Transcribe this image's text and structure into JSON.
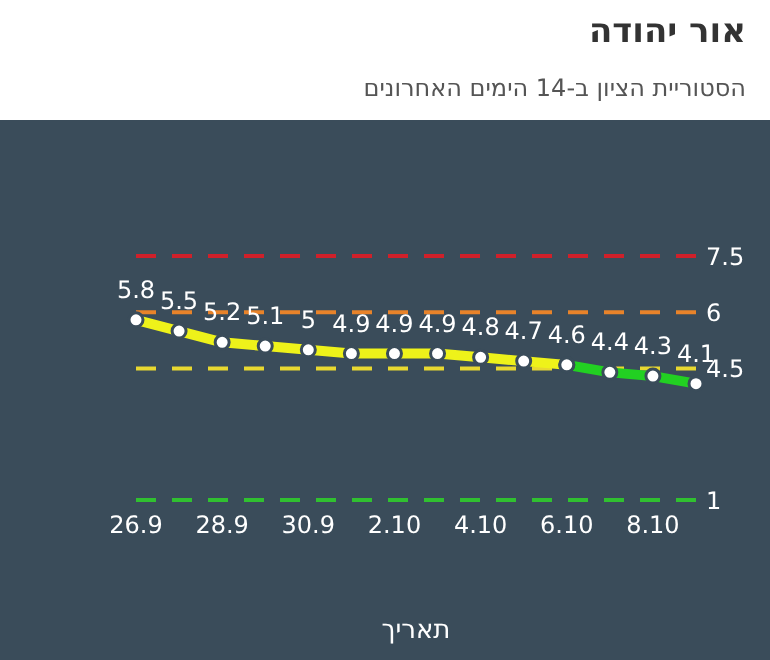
{
  "chart_data": {
    "type": "line",
    "title": "אור יהודה",
    "subtitle": "הסטוריית הציון ב-14 הימים האחרונים",
    "xlabel": "תאריך",
    "categories": [
      "26.9",
      null,
      "28.9",
      null,
      "30.9",
      null,
      "2.10",
      null,
      "4.10",
      null,
      "6.10",
      null,
      "8.10",
      null
    ],
    "series": [
      {
        "color": "#eef21a",
        "values": [
          5.8,
          5.5,
          5.2,
          5.1,
          5,
          4.9,
          4.9,
          4.9,
          4.8,
          4.7,
          4.6,
          null,
          null,
          null
        ],
        "value_labels": [
          "5.8",
          "5.5",
          "5.2",
          "5.1",
          "5",
          "4.9",
          "4.9",
          "4.9",
          "4.8",
          "4.7",
          "4.6",
          null,
          null,
          null
        ]
      },
      {
        "color": "#22d022",
        "values": [
          null,
          null,
          null,
          null,
          null,
          null,
          null,
          null,
          null,
          null,
          4.6,
          4.4,
          4.3,
          4.1
        ],
        "value_labels": [
          null,
          null,
          null,
          null,
          null,
          null,
          null,
          null,
          null,
          null,
          null,
          "4.4",
          "4.3",
          "4.1"
        ]
      }
    ],
    "tick_labels": "x",
    "marker": "circle",
    "line_style": "solid",
    "ref_lines": [
      {
        "axis": "y",
        "value": 7.5,
        "label": "7.5",
        "color": "#d0202a",
        "line_style": "dashed"
      },
      {
        "axis": "y",
        "value": 6,
        "label": "6",
        "color": "#e8832a",
        "line_style": "dashed"
      },
      {
        "axis": "y",
        "value": 4.5,
        "label": "4.5",
        "color": "#e8d830",
        "line_style": "dashed"
      },
      {
        "axis": "y",
        "value": 1,
        "label": "1",
        "color": "#30c030",
        "line_style": "dashed"
      }
    ]
  }
}
